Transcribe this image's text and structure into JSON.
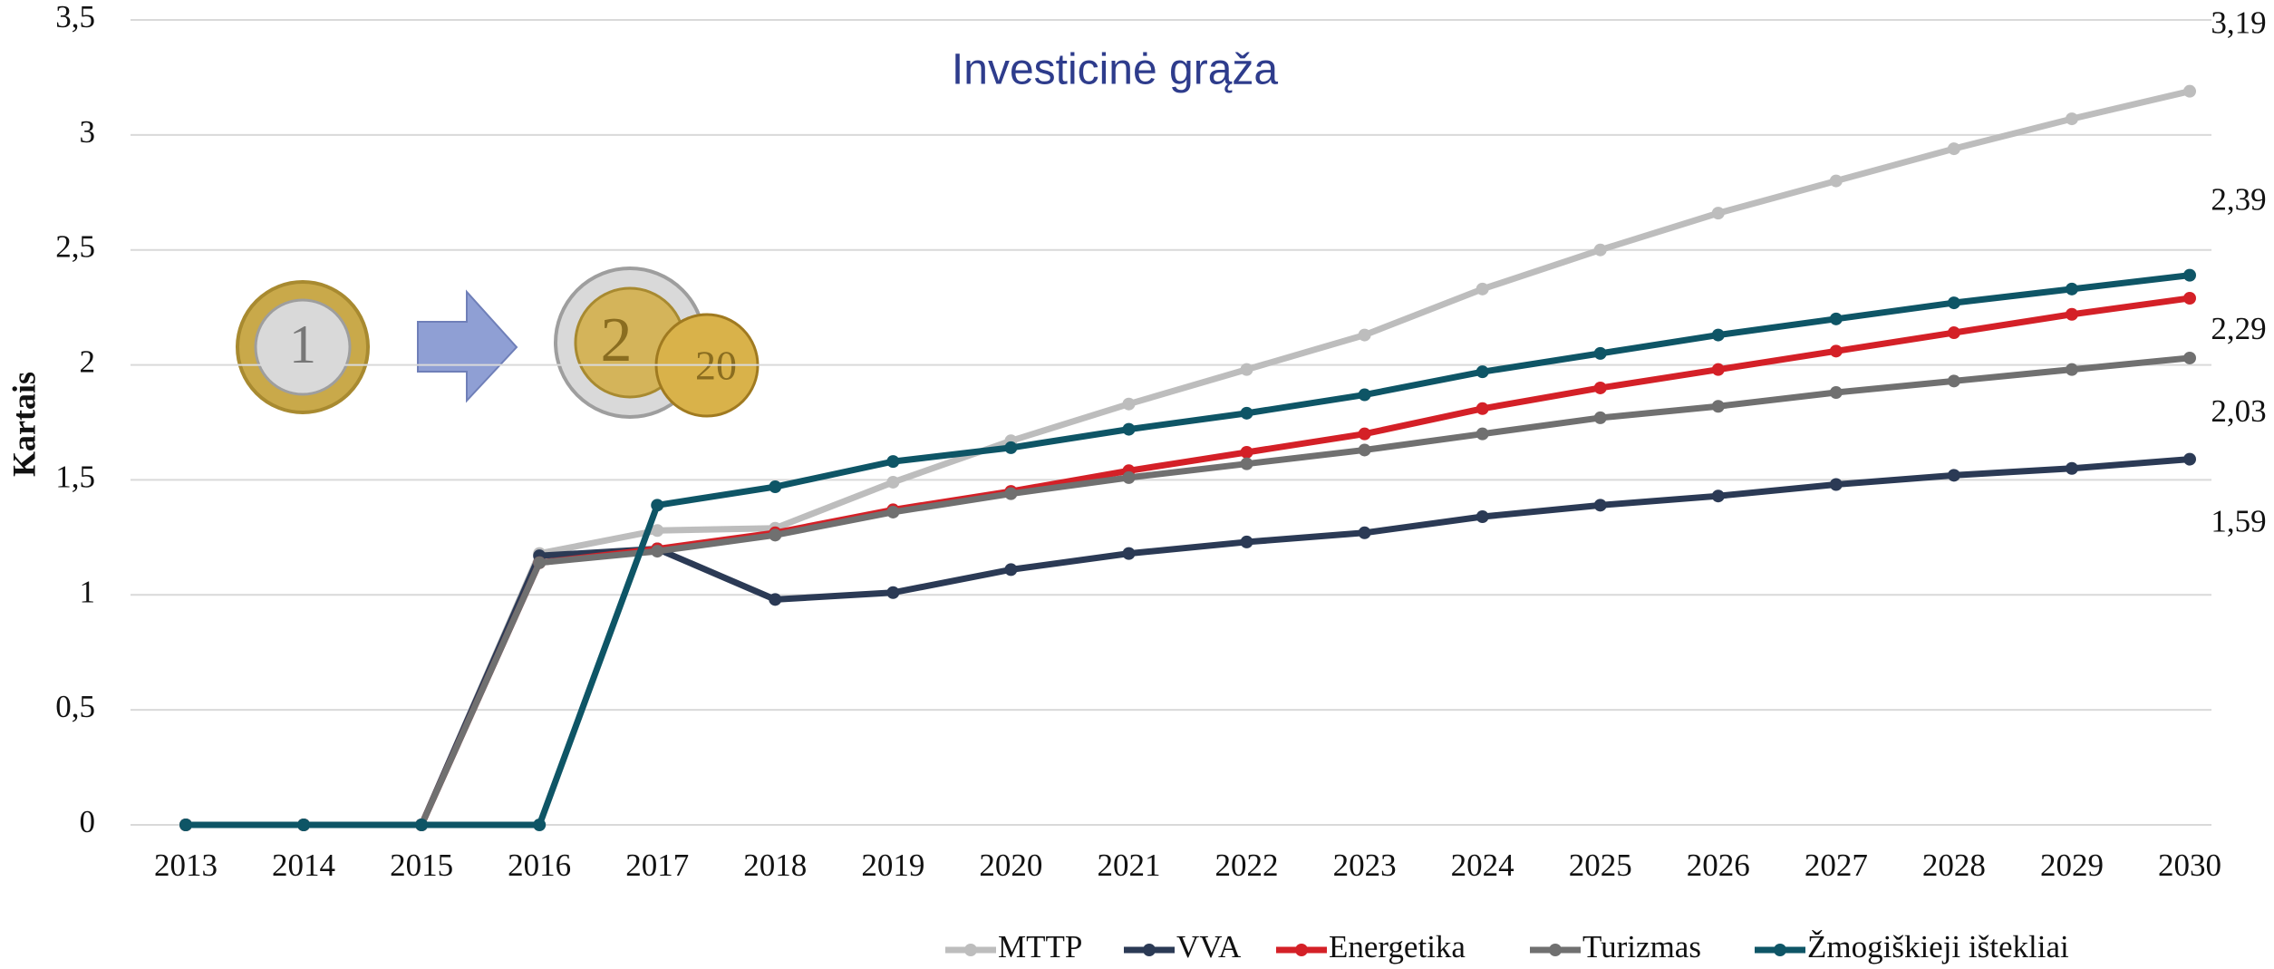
{
  "chart_data": {
    "type": "line",
    "title": "Investicinė grąža",
    "y_label": "Kartais",
    "categories": [
      "2013",
      "2014",
      "2015",
      "2016",
      "2017",
      "2018",
      "2019",
      "2020",
      "2021",
      "2022",
      "2023",
      "2024",
      "2025",
      "2026",
      "2027",
      "2028",
      "2029",
      "2030"
    ],
    "ylim": [
      0,
      3.5
    ],
    "yticks": [
      0,
      {
        "value": 0.5,
        "label": "0,5"
      },
      1,
      {
        "value": 1.5,
        "label": "1,5"
      },
      2,
      {
        "value": 2.5,
        "label": "2,5"
      },
      3,
      {
        "value": 3.5,
        "label": "3,5"
      }
    ],
    "grid": true,
    "legend": "bottom",
    "series": [
      {
        "name": "MTTP",
        "color": "#bdbdbd",
        "values": [
          0,
          0,
          0,
          1.18,
          1.28,
          1.29,
          1.49,
          1.67,
          1.83,
          1.98,
          2.13,
          2.33,
          2.5,
          2.66,
          2.8,
          2.94,
          3.07,
          3.19
        ],
        "value_labels": [
          null,
          null,
          null,
          null,
          null,
          null,
          null,
          null,
          null,
          null,
          null,
          null,
          null,
          null,
          null,
          null,
          null,
          "3,19"
        ]
      },
      {
        "name": "VVA",
        "color": "#2b3a55",
        "values": [
          0,
          0,
          0,
          1.17,
          1.2,
          0.98,
          1.01,
          1.11,
          1.18,
          1.23,
          1.27,
          1.34,
          1.39,
          1.43,
          1.48,
          1.52,
          1.55,
          1.59
        ],
        "value_labels": [
          null,
          null,
          null,
          null,
          null,
          null,
          null,
          null,
          null,
          null,
          null,
          null,
          null,
          null,
          null,
          null,
          null,
          "1,59"
        ]
      },
      {
        "name": "Energetika",
        "color": "#d42027",
        "values": [
          0,
          0,
          0,
          1.14,
          1.2,
          1.27,
          1.37,
          1.45,
          1.54,
          1.62,
          1.7,
          1.81,
          1.9,
          1.98,
          2.06,
          2.14,
          2.22,
          2.29
        ],
        "value_labels": [
          null,
          null,
          null,
          null,
          null,
          null,
          null,
          null,
          null,
          null,
          null,
          null,
          null,
          null,
          null,
          null,
          null,
          "2,29"
        ]
      },
      {
        "name": "Turizmas",
        "color": "#707070",
        "values": [
          0,
          0,
          0,
          1.14,
          1.19,
          1.26,
          1.36,
          1.44,
          1.51,
          1.57,
          1.63,
          1.7,
          1.77,
          1.82,
          1.88,
          1.93,
          1.98,
          2.03
        ],
        "value_labels": [
          null,
          null,
          null,
          null,
          null,
          null,
          null,
          null,
          null,
          null,
          null,
          null,
          null,
          null,
          null,
          null,
          null,
          "2,03"
        ]
      },
      {
        "name": "Žmogiškieji ištekliai",
        "color": "#0e5566",
        "values": [
          0,
          0,
          0,
          0,
          1.39,
          1.47,
          1.58,
          1.64,
          1.72,
          1.79,
          1.87,
          1.97,
          2.05,
          2.13,
          2.2,
          2.27,
          2.33,
          2.39
        ],
        "value_labels": [
          null,
          null,
          null,
          null,
          null,
          null,
          null,
          null,
          null,
          null,
          null,
          null,
          null,
          null,
          null,
          null,
          null,
          "2,39"
        ]
      }
    ]
  }
}
